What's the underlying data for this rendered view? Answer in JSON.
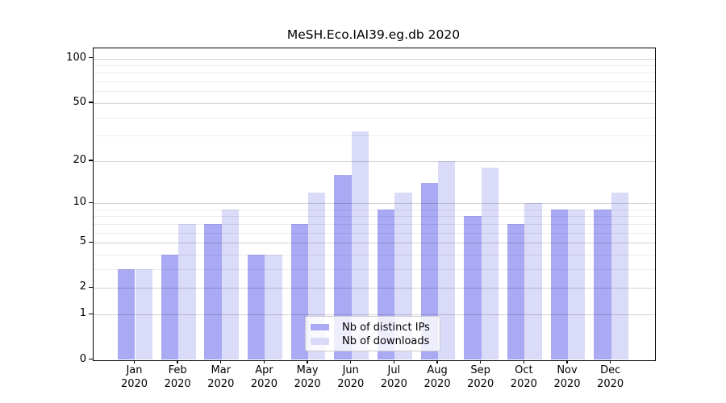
{
  "chart_data": {
    "type": "bar",
    "title": "MeSH.Eco.IAI39.eg.db 2020",
    "year": "2020",
    "categories": [
      "Jan",
      "Feb",
      "Mar",
      "Apr",
      "May",
      "Jun",
      "Jul",
      "Aug",
      "Sep",
      "Oct",
      "Nov",
      "Dec"
    ],
    "series": [
      {
        "name": "Nb of distinct IPs",
        "color": "#a9a9f4",
        "values": [
          3,
          4,
          7,
          4,
          7,
          16,
          9,
          14,
          8,
          7,
          9,
          9
        ]
      },
      {
        "name": "Nb of downloads",
        "color": "#dadaf9",
        "values": [
          3,
          7,
          9,
          4,
          12,
          32,
          12,
          20,
          18,
          10,
          9,
          12
        ]
      }
    ],
    "xlabel": "",
    "ylabel": "",
    "y_scale": "log1p",
    "y_ticks_major": [
      0,
      1,
      2,
      5,
      10,
      20,
      50,
      100
    ],
    "y_ticks_minor": [
      3,
      4,
      6,
      7,
      8,
      9,
      30,
      40,
      60,
      70,
      80,
      90
    ],
    "ylim": [
      0,
      117
    ],
    "grid": true,
    "legend_position": "lower center"
  },
  "legend": {
    "items": [
      {
        "label": "Nb of distinct IPs",
        "color": "#a9a9f4"
      },
      {
        "label": "Nb of downloads",
        "color": "#dadaf9"
      }
    ]
  },
  "colors": {
    "background": "#ffffff",
    "spine": "#000000",
    "grid_major": "#d2d2d2",
    "grid_minor": "#ededed",
    "text": "#000000",
    "legend_border": "#cccccc"
  }
}
